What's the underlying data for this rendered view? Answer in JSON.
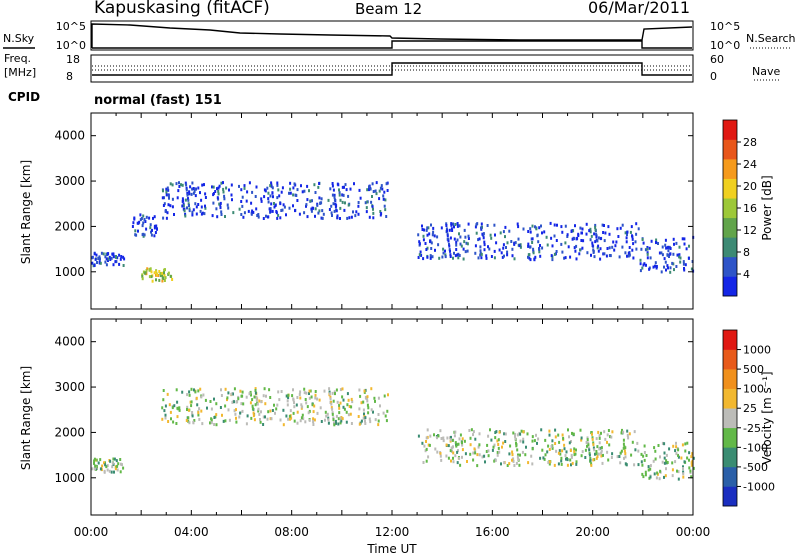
{
  "header": {
    "station": "Kapuskasing (fitACF)",
    "beam": "Beam 12",
    "date": "06/Mar/2011"
  },
  "status_panels": {
    "nsky_label": "N.Sky",
    "nsky_ticks": [
      "10^5",
      "10^0"
    ],
    "nsearch_label": "N.Search",
    "nsearch_ticks": [
      "10^5",
      "10^0"
    ],
    "freq_label_1": "Freq.",
    "freq_label_2": "[MHz]",
    "freq_ticks": [
      "18",
      "8"
    ],
    "nave_label": "Nave",
    "nave_ticks": [
      "60",
      "0"
    ],
    "cpid_label": "CPID",
    "cpid_value": "normal (fast) 151"
  },
  "chart_data": [
    {
      "type": "heatmap",
      "panel": "power",
      "ylabel": "Slant Range [km]",
      "yticks": [
        "4000",
        "3000",
        "2000",
        "1000"
      ],
      "ylim": [
        180,
        4500
      ],
      "xlim_hours": [
        0,
        24
      ],
      "colorbar_label": "Power [dB]",
      "colorbar_ticks": [
        "28",
        "24",
        "20",
        "16",
        "12",
        "8",
        "4"
      ],
      "colors": [
        "#1426e6",
        "#2e54c8",
        "#3d8a74",
        "#61a44a",
        "#9dc838",
        "#f0d020",
        "#f59a1c",
        "#e8561a",
        "#e01812"
      ],
      "echo_regions": [
        {
          "start_h": 0.0,
          "end_h": 1.3,
          "range_km": [
            1150,
            1450
          ],
          "level": 1
        },
        {
          "start_h": 1.6,
          "end_h": 2.6,
          "range_km": [
            1800,
            2300
          ],
          "level": 1
        },
        {
          "start_h": 2.0,
          "end_h": 3.2,
          "range_km": [
            820,
            1100
          ],
          "level": 5
        },
        {
          "start_h": 2.8,
          "end_h": 11.8,
          "range_km": [
            2200,
            3000
          ],
          "level": 1
        },
        {
          "start_h": 13.0,
          "end_h": 21.8,
          "range_km": [
            1300,
            2100
          ],
          "level": 1
        },
        {
          "start_h": 21.8,
          "end_h": 24.0,
          "range_km": [
            1000,
            1800
          ],
          "level": 1
        }
      ]
    },
    {
      "type": "heatmap",
      "panel": "velocity",
      "ylabel": "Slant Range [km]",
      "yticks": [
        "4000",
        "3000",
        "2000",
        "1000"
      ],
      "ylim": [
        180,
        4500
      ],
      "xlim_hours": [
        0,
        24
      ],
      "xticks": [
        "00:00",
        "04:00",
        "08:00",
        "12:00",
        "16:00",
        "20:00",
        "00:00"
      ],
      "xlabel": "Time UT",
      "colorbar_label": "Velocity [m s⁻¹]",
      "colorbar_ticks": [
        "1000",
        "500",
        "100",
        "25",
        "-25",
        "-100",
        "-500",
        "-1000"
      ],
      "colors": [
        "#1a2ec0",
        "#2a5fa8",
        "#3a8c72",
        "#62b848",
        "#bcbcb8",
        "#f2b830",
        "#f0901c",
        "#e85a1a",
        "#e01812"
      ],
      "echo_regions": [
        {
          "start_h": 0.0,
          "end_h": 1.3,
          "range_km": [
            1150,
            1450
          ],
          "level": 4
        },
        {
          "start_h": 2.8,
          "end_h": 11.8,
          "range_km": [
            2200,
            3000
          ],
          "level": 4
        },
        {
          "start_h": 13.0,
          "end_h": 21.8,
          "range_km": [
            1300,
            2100
          ],
          "level": 4
        },
        {
          "start_h": 21.8,
          "end_h": 24.0,
          "range_km": [
            1000,
            1800
          ],
          "level": 4
        }
      ]
    }
  ]
}
